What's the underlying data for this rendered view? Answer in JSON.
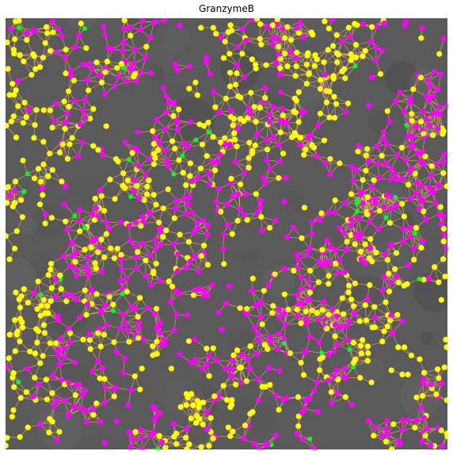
{
  "title": "GranzymeB",
  "colors": {
    "background_tissue": "#5a5a5a",
    "edge": "#e8a86a",
    "node_a": "#ff00ff",
    "node_b": "#ffff00",
    "node_c": "#00ff22"
  }
}
